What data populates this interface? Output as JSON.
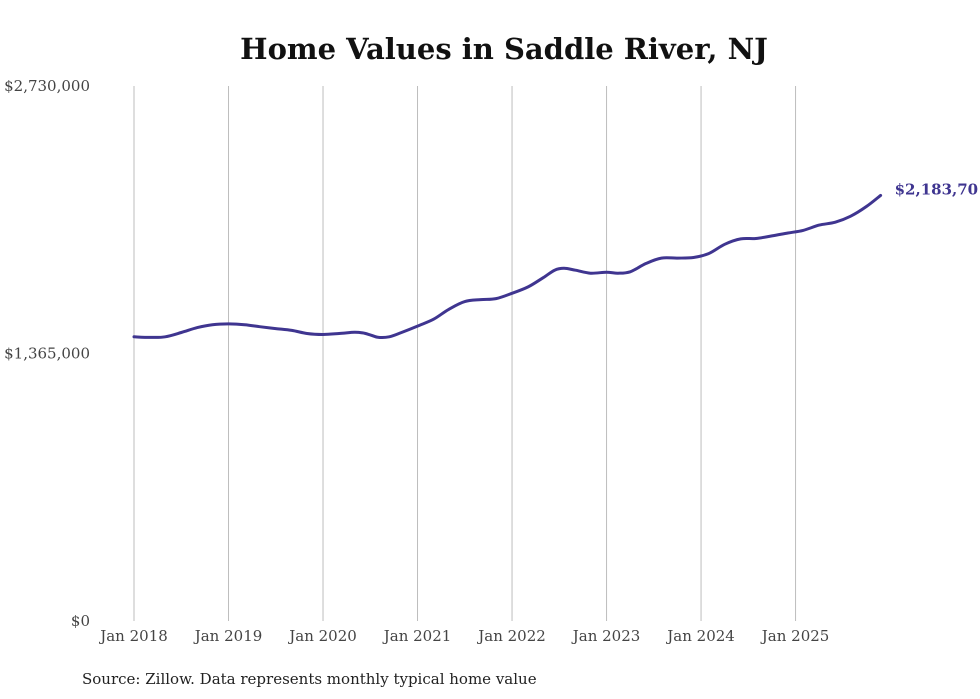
{
  "chart_data": {
    "type": "line",
    "title": "Home Values in Saddle River, NJ",
    "xlabel": "",
    "ylabel": "",
    "source": "Source: Zillow. Data represents monthly typical home value",
    "ylim": [
      0,
      2730000
    ],
    "y_ticks": [
      {
        "value": 0,
        "label": "$0"
      },
      {
        "value": 1365000,
        "label": "$1,365,000"
      },
      {
        "value": 2730000,
        "label": "$2,730,000"
      }
    ],
    "x_ticks": [
      {
        "value": 2018.0,
        "label": "Jan 2018"
      },
      {
        "value": 2019.0,
        "label": "Jan 2019"
      },
      {
        "value": 2020.0,
        "label": "Jan 2020"
      },
      {
        "value": 2021.0,
        "label": "Jan 2021"
      },
      {
        "value": 2022.0,
        "label": "Jan 2022"
      },
      {
        "value": 2023.0,
        "label": "Jan 2023"
      },
      {
        "value": 2024.0,
        "label": "Jan 2024"
      },
      {
        "value": 2025.0,
        "label": "Jan 2025"
      }
    ],
    "xlim": [
      2018.0,
      2025.83
    ],
    "grid": "vertical",
    "series": [
      {
        "name": "Typical home value",
        "color": "#3f3590",
        "end_label": "$2,183,70",
        "points": [
          [
            2018.0,
            1450000
          ],
          [
            2018.17,
            1447000
          ],
          [
            2018.33,
            1450000
          ],
          [
            2018.5,
            1472000
          ],
          [
            2018.67,
            1497000
          ],
          [
            2018.83,
            1512000
          ],
          [
            2019.0,
            1516000
          ],
          [
            2019.17,
            1512000
          ],
          [
            2019.33,
            1502000
          ],
          [
            2019.5,
            1492000
          ],
          [
            2019.67,
            1483000
          ],
          [
            2019.83,
            1467000
          ],
          [
            2020.0,
            1462000
          ],
          [
            2020.17,
            1467000
          ],
          [
            2020.33,
            1473000
          ],
          [
            2020.42,
            1470000
          ],
          [
            2020.5,
            1460000
          ],
          [
            2020.58,
            1448000
          ],
          [
            2020.7,
            1450000
          ],
          [
            2020.83,
            1472000
          ],
          [
            2021.0,
            1505000
          ],
          [
            2021.17,
            1540000
          ],
          [
            2021.33,
            1590000
          ],
          [
            2021.5,
            1630000
          ],
          [
            2021.67,
            1640000
          ],
          [
            2021.83,
            1645000
          ],
          [
            2022.0,
            1672000
          ],
          [
            2022.17,
            1705000
          ],
          [
            2022.33,
            1752000
          ],
          [
            2022.45,
            1790000
          ],
          [
            2022.55,
            1800000
          ],
          [
            2022.67,
            1790000
          ],
          [
            2022.83,
            1775000
          ],
          [
            2023.0,
            1780000
          ],
          [
            2023.12,
            1775000
          ],
          [
            2023.25,
            1782000
          ],
          [
            2023.42,
            1825000
          ],
          [
            2023.58,
            1852000
          ],
          [
            2023.75,
            1852000
          ],
          [
            2023.92,
            1855000
          ],
          [
            2024.08,
            1875000
          ],
          [
            2024.25,
            1922000
          ],
          [
            2024.42,
            1950000
          ],
          [
            2024.58,
            1952000
          ],
          [
            2024.75,
            1965000
          ],
          [
            2024.92,
            1980000
          ],
          [
            2025.08,
            1993000
          ],
          [
            2025.25,
            2020000
          ],
          [
            2025.42,
            2035000
          ],
          [
            2025.58,
            2065000
          ],
          [
            2025.75,
            2115000
          ],
          [
            2025.9,
            2172000
          ]
        ]
      }
    ]
  }
}
